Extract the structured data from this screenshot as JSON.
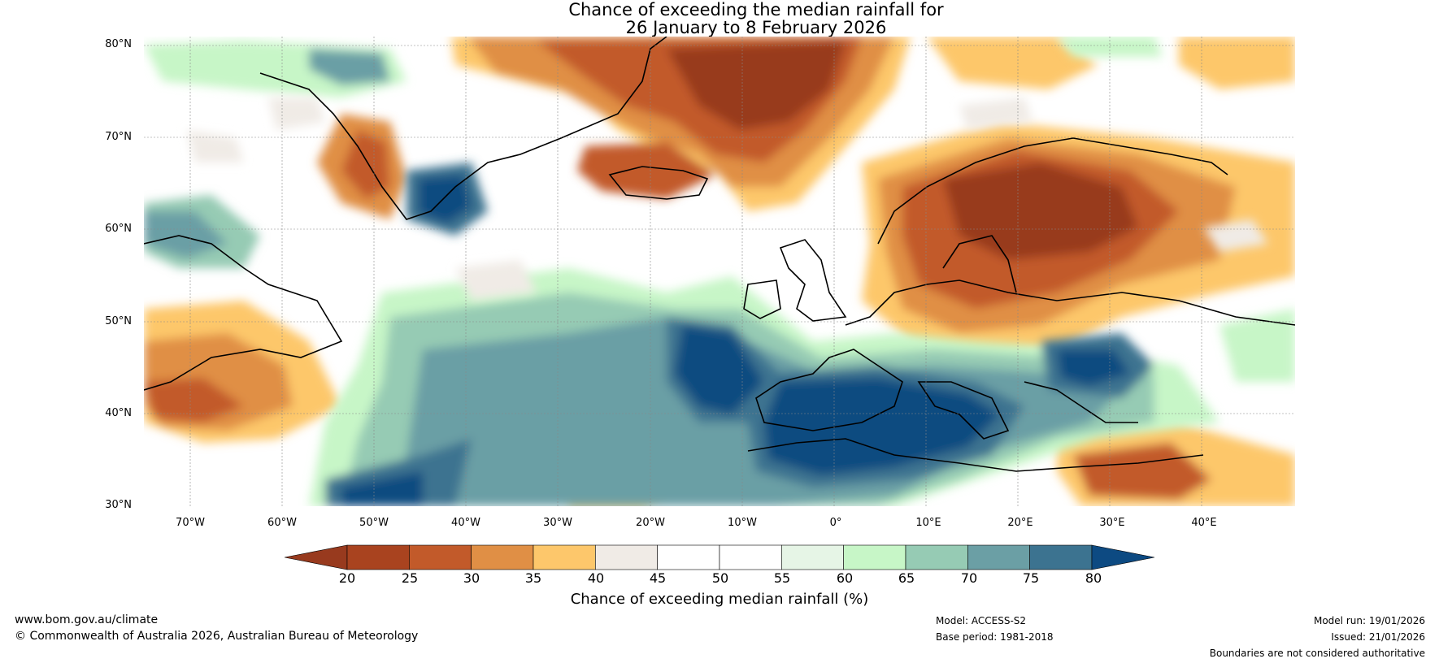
{
  "title": {
    "line1": "Chance of exceeding the median rainfall for",
    "line2": "26 January to 8 February 2026"
  },
  "lat_labels": [
    "80°N",
    "70°N",
    "60°N",
    "50°N",
    "40°N",
    "30°N"
  ],
  "lon_labels": [
    "70°W",
    "60°W",
    "50°W",
    "40°W",
    "30°W",
    "20°W",
    "10°W",
    "0°",
    "10°E",
    "20°E",
    "30°E",
    "40°E"
  ],
  "colorbar": {
    "ticks": [
      "20",
      "25",
      "30",
      "35",
      "40",
      "45",
      "50",
      "55",
      "60",
      "65",
      "70",
      "75",
      "80"
    ],
    "colors": [
      "#a9431f",
      "#c25a2a",
      "#e08f45",
      "#fdc76b",
      "#f0ebe6",
      "#ffffff",
      "#ffffff",
      "#e6f5e6",
      "#c7f6c7",
      "#96cbb4",
      "#6b9fa5",
      "#3c7390",
      "#0f4c80"
    ],
    "under_color": "#983a1e",
    "over_color": "#0d4a82",
    "label": "Chance of exceeding median rainfall (%)"
  },
  "footer": {
    "website": "www.bom.gov.au/climate",
    "copyright": "© Commonwealth of Australia 2026, Australian Bureau of Meteorology",
    "model": "Model: ACCESS-S2",
    "base_period": "Base period: 1981-2018",
    "model_run": "Model run: 19/01/2026",
    "issued": "Issued: 21/01/2026",
    "disclaimer": "Boundaries are not considered authoritative"
  }
}
